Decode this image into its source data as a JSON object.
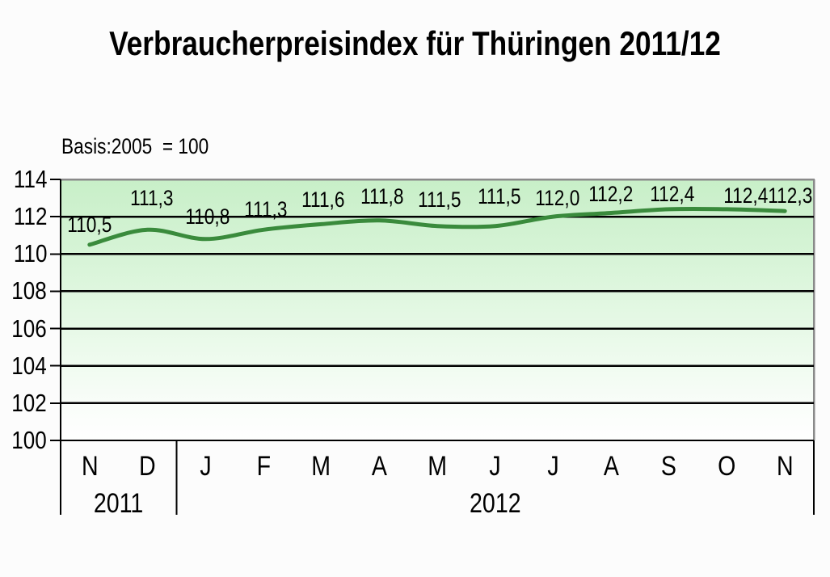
{
  "title": "Verbraucherpreisindex für Thüringen 2011/12",
  "basis_label": "Basis:2005  = 100",
  "chart_data": {
    "type": "line",
    "title": "Verbraucherpreisindex für Thüringen 2011/12",
    "subtitle": "Basis:2005  = 100",
    "categories": [
      "N",
      "D",
      "J",
      "F",
      "M",
      "A",
      "M",
      "J",
      "J",
      "A",
      "S",
      "O",
      "N"
    ],
    "year_groups": [
      {
        "label": "2011",
        "span": 2
      },
      {
        "label": "2012",
        "span": 11
      }
    ],
    "series": [
      {
        "name": "Verbraucherpreisindex",
        "values": [
          110.5,
          111.3,
          110.8,
          111.3,
          111.6,
          111.8,
          111.5,
          111.5,
          112.0,
          112.2,
          112.4,
          112.4,
          112.3
        ],
        "labels": [
          "110,5",
          "111,3",
          "110,8",
          "111,3",
          "111,6",
          "111,8",
          "111,5",
          "111,5",
          "112,0",
          "112,2",
          "112,4",
          "112,4",
          "112,3"
        ],
        "color": "#3a8b3c"
      }
    ],
    "ylim": [
      100,
      114
    ],
    "yticks": [
      114,
      112,
      110,
      108,
      106,
      104,
      102,
      100
    ],
    "grid": true,
    "smooth": true,
    "legend": "none",
    "decimal_separator": ",",
    "plot_background": {
      "top": "#c8efc8",
      "bottom": "#ffffff"
    },
    "axis_color": "#000000",
    "border_color": "#8a8a8a"
  }
}
